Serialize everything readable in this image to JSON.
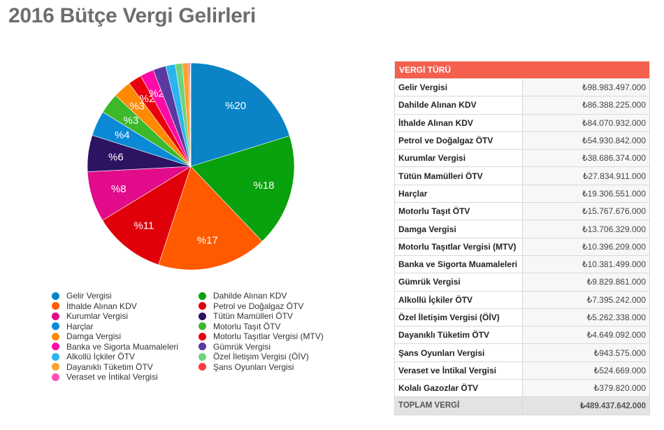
{
  "title": "2016 Bütçe Vergi Gelirleri",
  "chart_data": {
    "type": "pie",
    "title": "2016 Bütçe Vergi Gelirleri",
    "slices": [
      {
        "name": "Gelir Vergisi",
        "value": 98983497000,
        "label": "%20",
        "color": "#0a84c6"
      },
      {
        "name": "Dahilde Alınan KDV",
        "value": 86388225000,
        "label": "%18",
        "color": "#0aa10e"
      },
      {
        "name": "İthalde Alınan KDV",
        "value": 84070932000,
        "label": "%17",
        "color": "#ff5a00"
      },
      {
        "name": "Petrol ve Doğalgaz ÖTV",
        "value": 54930842000,
        "label": "%11",
        "color": "#e0000a"
      },
      {
        "name": "Kurumlar Vergisi",
        "value": 38686374000,
        "label": "%8",
        "color": "#e20b8a"
      },
      {
        "name": "Tütün Mamülleri ÖTV",
        "value": 27834911000,
        "label": "%6",
        "color": "#2e1362"
      },
      {
        "name": "Harçlar",
        "value": 19306551000,
        "label": "%4",
        "color": "#0a8ad6"
      },
      {
        "name": "Motorlu Taşıt ÖTV",
        "value": 15767676000,
        "label": "%3",
        "color": "#3cb82b"
      },
      {
        "name": "Damga Vergisi",
        "value": 13706329000,
        "label": "%3",
        "color": "#ff8a00"
      },
      {
        "name": "Motorlu Taşıtlar Vergisi (MTV)",
        "value": 10396209000,
        "label": "%2",
        "color": "#e8000c"
      },
      {
        "name": "Banka ve Sigorta Muamaleleri",
        "value": 10381499000,
        "label": "%2",
        "color": "#ff0aa6"
      },
      {
        "name": "Gümrük Vergisi",
        "value": 9829861000,
        "label": "",
        "color": "#5a3aa0"
      },
      {
        "name": "Alkollü İçkiler ÖTV",
        "value": 7395242000,
        "label": "",
        "color": "#2bb4f0"
      },
      {
        "name": "Özel İletişim Vergisi (ÖİV)",
        "value": 5262338000,
        "label": "",
        "color": "#6cd47a"
      },
      {
        "name": "Dayanıklı Tüketim ÖTV",
        "value": 4649092000,
        "label": "",
        "color": "#ffa030"
      },
      {
        "name": "Şans Oyunları Vergisi",
        "value": 943575000,
        "label": "",
        "color": "#ff3a3a"
      },
      {
        "name": "Veraset ve İntikal Vergisi",
        "value": 524669000,
        "label": "",
        "color": "#ff50b8"
      },
      {
        "name": "Kolalı Gazozlar ÖTV",
        "value": 379820000,
        "label": "",
        "color": "#8a5ad0"
      }
    ],
    "legend": [
      {
        "name": "Gelir Vergisi",
        "color": "#0a84c6"
      },
      {
        "name": "Dahilde Alınan KDV",
        "color": "#0aa10e"
      },
      {
        "name": "İthalde Alınan KDV",
        "color": "#ff5a00"
      },
      {
        "name": "Petrol ve Doğalgaz ÖTV",
        "color": "#e0000a"
      },
      {
        "name": "Kurumlar Vergisi",
        "color": "#e20b8a"
      },
      {
        "name": "Tütün Mamülleri ÖTV",
        "color": "#2e1362"
      },
      {
        "name": "Harçlar",
        "color": "#0a8ad6"
      },
      {
        "name": "Motorlu Taşıt ÖTV",
        "color": "#3cb82b"
      },
      {
        "name": "Damga Vergisi",
        "color": "#ff8a00"
      },
      {
        "name": "Motorlu Taşıtlar Vergisi (MTV)",
        "color": "#e8000c"
      },
      {
        "name": "Banka ve Sigorta Muamaleleri",
        "color": "#ff0aa6"
      },
      {
        "name": "Gümrük Vergisi",
        "color": "#5a3aa0"
      },
      {
        "name": "Alkollü İçkiler ÖTV",
        "color": "#2bb4f0"
      },
      {
        "name": "Özel İletişim Vergisi (ÖİV)",
        "color": "#6cd47a"
      },
      {
        "name": "Dayanıklı Tüketim ÖTV",
        "color": "#ffa030"
      },
      {
        "name": "Şans Oyunları Vergisi",
        "color": "#ff3a3a"
      },
      {
        "name": "Veraset ve İntikal Vergisi",
        "color": "#ff50b8"
      }
    ]
  },
  "table": {
    "header": "VERGİ TÜRÜ",
    "rows": [
      {
        "name": "Gelir Vergisi",
        "value": "₺98.983.497.000"
      },
      {
        "name": "Dahilde Alınan KDV",
        "value": "₺86.388.225.000"
      },
      {
        "name": "İthalde Alınan KDV",
        "value": "₺84.070.932.000"
      },
      {
        "name": "Petrol ve Doğalgaz ÖTV",
        "value": "₺54.930.842.000"
      },
      {
        "name": "Kurumlar Vergisi",
        "value": "₺38.686.374.000"
      },
      {
        "name": "Tütün Mamülleri ÖTV",
        "value": "₺27.834.911.000"
      },
      {
        "name": "Harçlar",
        "value": "₺19.306.551.000"
      },
      {
        "name": "Motorlu Taşıt ÖTV",
        "value": "₺15.767.676.000"
      },
      {
        "name": "Damga Vergisi",
        "value": "₺13.706.329.000"
      },
      {
        "name": "Motorlu Taşıtlar Vergisi (MTV)",
        "value": "₺10.396.209.000"
      },
      {
        "name": "Banka ve Sigorta Muamaleleri",
        "value": "₺10.381.499.000"
      },
      {
        "name": "Gümrük Vergisi",
        "value": "₺9.829.861.000"
      },
      {
        "name": "Alkollü İçkiler ÖTV",
        "value": "₺7.395.242.000"
      },
      {
        "name": "Özel İletişim Vergisi (ÖİV)",
        "value": "₺5.262.338.000"
      },
      {
        "name": "Dayanıklı Tüketim ÖTV",
        "value": "₺4.649.092.000"
      },
      {
        "name": "Şans Oyunları Vergisi",
        "value": "₺943.575.000"
      },
      {
        "name": "Veraset ve İntikal Vergisi",
        "value": "₺524.669.000"
      },
      {
        "name": "Kolalı Gazozlar ÖTV",
        "value": "₺379.820.000"
      }
    ],
    "total": {
      "name": "TOPLAM VERGİ",
      "value": "₺489.437.642.000"
    }
  }
}
